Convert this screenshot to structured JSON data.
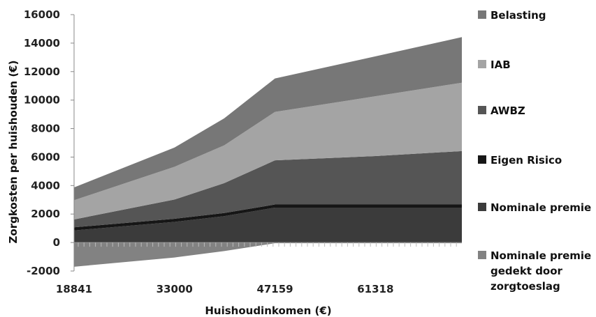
{
  "chart_data": {
    "type": "area",
    "stacked": true,
    "title": "",
    "xlabel": "Huishoudinkomen (€)",
    "ylabel": "Zorgkosten per huishouden (€)",
    "x": [
      18841,
      33000,
      40000,
      47159,
      61318,
      73500
    ],
    "xticks": [
      "18841",
      "33000",
      "47159",
      "61318"
    ],
    "ylim": [
      -2000,
      16000
    ],
    "yticks": [
      "-2000",
      "0",
      "2000",
      "4000",
      "6000",
      "8000",
      "10000",
      "12000",
      "14000",
      "16000"
    ],
    "grid": false,
    "legend_position": "right",
    "series": [
      {
        "name": "Nominale premie gedekt door zorgtoeslag",
        "color": "#828282",
        "values": [
          -1700,
          -1050,
          -600,
          -50,
          -50,
          -50
        ]
      },
      {
        "name": "Nominale premie",
        "color": "#3b3b3b",
        "values": [
          850,
          1450,
          1850,
          2450,
          2450,
          2450
        ]
      },
      {
        "name": "Eigen Risico",
        "color": "#161616",
        "values": [
          220,
          220,
          220,
          220,
          220,
          220
        ]
      },
      {
        "name": "AWBZ",
        "color": "#555555",
        "values": [
          550,
          1350,
          2100,
          3100,
          3400,
          3750
        ]
      },
      {
        "name": "IAB",
        "color": "#a4a4a4",
        "values": [
          1350,
          2300,
          2650,
          3400,
          4200,
          4800
        ]
      },
      {
        "name": "Belasting",
        "color": "#777777",
        "values": [
          900,
          1350,
          1900,
          2350,
          2800,
          3200
        ]
      }
    ]
  }
}
